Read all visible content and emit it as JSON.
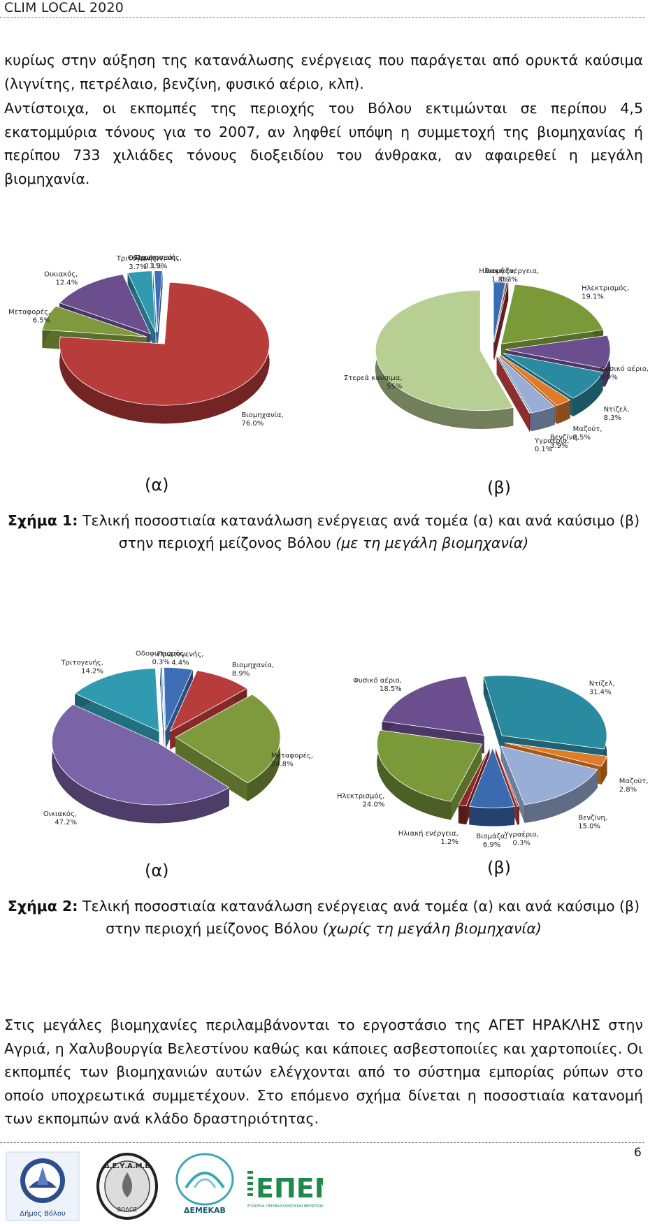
{
  "header": {
    "title": "CLIM LOCAL 2020"
  },
  "paragraphs": {
    "p1": "κυρίως στην αύξηση της κατανάλωσης ενέργειας που παράγεται από ορυκτά καύσιμα (λιγνίτης, πετρέλαιο, βενζίνη, φυσικό αέριο, κλπ).",
    "p2": "Αντίστοιχα, οι εκπομπές της περιοχής του Βόλου εκτιμώνται σε περίπου 4,5 εκατομμύρια τόνους για το 2007, αν ληφθεί υπόψη η συμμετοχή της βιομηχανίας ή περίπου 733 χιλιάδες τόνους διοξειδίου του άνθρακα, αν αφαιρεθεί η μεγάλη βιομηχανία.",
    "p3": "Στις μεγάλες βιομηχανίες περιλαμβάνονται το εργοστάσιο της ΑΓΕΤ ΗΡΑΚΛΗΣ στην Αγριά, η Χαλυβουργία Βελεστίνου καθώς και κάποιες ασβεστοποιίες και χαρτοποιίες. Οι εκπομπές των βιομηχανιών αυτών ελέγχονται από το σύστημα εμπορίας ρύπων στο οποίο υποχρεωτικά συμμετέχουν. Στο επόμενο σχήμα δίνεται η ποσοστιαία κατανομή των εκπομπών ανά κλάδο δραστηριότητας."
  },
  "figure1": {
    "label_a": "(α)",
    "label_b": "(β)",
    "caption_bold": "Σχήμα 1:",
    "caption_text": " Τελική ποσοστιαία κατανάλωση ενέργειας ανά τομέα (α) και ανά καύσιμο (β) στην περιοχή μείζονος Βόλου ",
    "caption_italic": "(με τη μεγάλη βιομηχανία)"
  },
  "figure2": {
    "label_a": "(α)",
    "label_b": "(β)",
    "caption_bold": "Σχήμα 2:",
    "caption_text": " Τελική ποσοστιαία κατανάλωση ενέργειας ανά τομέα (α) και ανά καύσιμο (β) στην περιοχή μείζονος Βόλου ",
    "caption_italic": "(χωρίς τη μεγάλη βιομηχανία)"
  },
  "chart_data": [
    {
      "id": "fig1a",
      "type": "pie",
      "slices": [
        {
          "name": "Οδοφωτισμός",
          "value": 0.1,
          "label": "Οδοφωτισμός, 0.1%",
          "color": "#4a8fcf"
        },
        {
          "name": "Πρωτογενής",
          "value": 1.2,
          "label": "Πρωτογενής, 1.2%",
          "color": "#3e6fb5"
        },
        {
          "name": "Βιομηχανία",
          "value": 76.0,
          "label": "Βιομηχανία, 76.0%",
          "color": "#b83c3a"
        },
        {
          "name": "Μεταφορές",
          "value": 6.5,
          "label": "Μεταφορές, 6.5%",
          "color": "#7e9a3c"
        },
        {
          "name": "Οικιακός",
          "value": 12.4,
          "label": "Οικιακός, 12.4%",
          "color": "#6a4e8e"
        },
        {
          "name": "Τριτογενής",
          "value": 3.7,
          "label": "Τριτογενής, 3.7%",
          "color": "#2f9ab0"
        }
      ]
    },
    {
      "id": "fig1b",
      "type": "pie",
      "slices": [
        {
          "name": "Βιομάζα",
          "value": 1.8,
          "label": "Βιομάζα, 1.8%",
          "color": "#3a6bb0"
        },
        {
          "name": "Ηλιακή ενέργεια",
          "value": 0.3,
          "label": "Ηλιακή ενέργεια, 0.3%",
          "color": "#8b2a2a"
        },
        {
          "name": "Ηλεκτρισμός",
          "value": 19.1,
          "label": "Ηλεκτρισμός, 19.1%",
          "color": "#7a9a3a"
        },
        {
          "name": "Φυσικό αέριο",
          "value": 8.9,
          "label": "Φυσικό αέριο, 8.9%",
          "color": "#6a4e8e"
        },
        {
          "name": "Ντίζελ",
          "value": 8.3,
          "label": "Ντίζελ, 8.3%",
          "color": "#2a8aa0"
        },
        {
          "name": "Μαζούτ",
          "value": 2.5,
          "label": "Μαζούτ, 2.5%",
          "color": "#e07b2a"
        },
        {
          "name": "Βενζίνη",
          "value": 3.9,
          "label": "Βενζίνη, 3.9%",
          "color": "#98aed6"
        },
        {
          "name": "Υγραέριο",
          "value": 0.1,
          "label": "Υγραέριο, 0.1%",
          "color": "#c04040"
        },
        {
          "name": "Στερεά καύσιμα",
          "value": 55,
          "label": "Στερεά καύσιμα, 55%",
          "color": "#b7cf93"
        }
      ]
    },
    {
      "id": "fig2a",
      "type": "pie",
      "slices": [
        {
          "name": "Οδοφωτισμός",
          "value": 0.3,
          "label": "Οδοφωτισμός, 0.3%",
          "color": "#4a8fcf"
        },
        {
          "name": "Πρωτογενής",
          "value": 4.4,
          "label": "Πρωτογενής, 4.4%",
          "color": "#3e6fb5"
        },
        {
          "name": "Βιομηχανία",
          "value": 8.9,
          "label": "Βιομηχανία, 8.9%",
          "color": "#b83c3a"
        },
        {
          "name": "Μεταφορές",
          "value": 24.8,
          "label": "Μεταφορές, 24.8%",
          "color": "#7e9a3c"
        },
        {
          "name": "Οικιακός",
          "value": 47.2,
          "label": "Οικιακός, 47.2%",
          "color": "#7a64a8"
        },
        {
          "name": "Τριτογενής",
          "value": 14.2,
          "label": "Τριτογενής, 14.2%",
          "color": "#2f9ab0"
        }
      ]
    },
    {
      "id": "fig2b",
      "type": "pie",
      "slices": [
        {
          "name": "Ντίζελ",
          "value": 31.4,
          "label": "Ντίζελ, 31.4%",
          "color": "#2a8aa0"
        },
        {
          "name": "Μαζούτ",
          "value": 2.8,
          "label": "Μαζούτ, 2.8%",
          "color": "#e07b2a"
        },
        {
          "name": "Βενζίνη",
          "value": 15.0,
          "label": "Βενζίνη, 15.0%",
          "color": "#98aed6"
        },
        {
          "name": "Υγραέριο",
          "value": 0.3,
          "label": "Υγραέριο, 0.3%",
          "color": "#c04040"
        },
        {
          "name": "Βιομάζα",
          "value": 6.9,
          "label": "Βιομάζα, 6.9%",
          "color": "#3a6bb0"
        },
        {
          "name": "Ηλιακή ενέργεια",
          "value": 1.2,
          "label": "Ηλιακή ενέργεια, 1.2%",
          "color": "#8b2a2a"
        },
        {
          "name": "Ηλεκτρισμός",
          "value": 24.0,
          "label": "Ηλεκτρισμός, 24.0%",
          "color": "#7a9a3a"
        },
        {
          "name": "Φυσικό αέριο",
          "value": 18.5,
          "label": "Φυσικό αέριο, 18.5%",
          "color": "#6a4e8e"
        }
      ]
    }
  ],
  "footer": {
    "page_number": "6",
    "logos": {
      "dimos": "Δήμος Βόλου",
      "deyamv": "Δ.Ε.Υ.Α.Μ.Β",
      "deyamv_city": "ΒΟΛΟΣ",
      "demekav": "ΔΕΜΕΚΑΒ",
      "epem": "ΕΠΕΜ",
      "epem_sub": "ΕΤΑΙΡΕΙΑ ΠΕΡΙΒΑΛΛΟΝΤΙΚΩΝ ΜΕΛΕΤΩΝ"
    }
  }
}
